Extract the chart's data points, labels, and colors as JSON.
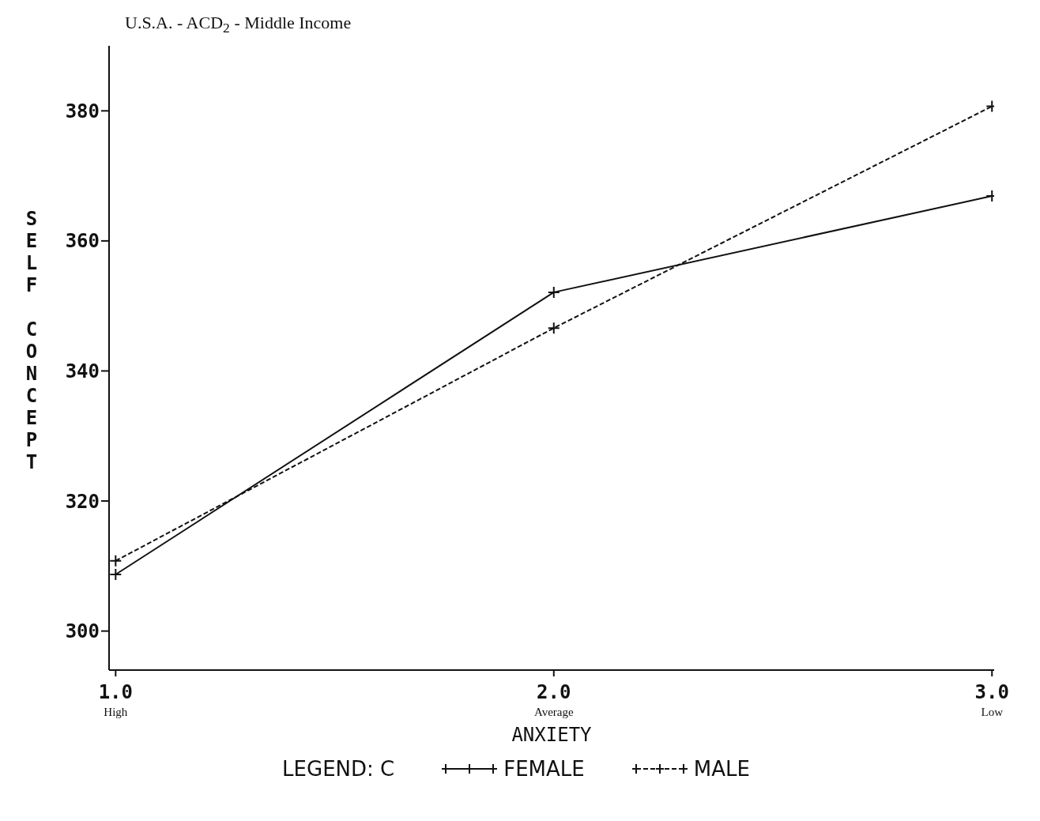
{
  "chart_data": {
    "type": "line",
    "title": "U.S.A. - ACD$_{2}$ - Middle Income",
    "xlabel": "ANXIETY",
    "ylabel": "SELF CONCEPT",
    "legend_title": "LEGEND: C",
    "x": [
      1,
      2,
      3
    ],
    "series": [
      {
        "name": "FEMALE",
        "color": "#111111",
        "values": [
          308.7,
          352.1,
          366.9
        ],
        "line_style": "solid"
      },
      {
        "name": "MALE",
        "color": "#111111",
        "values": [
          310.8,
          346.6,
          380.7
        ],
        "line_style": "dashed"
      }
    ],
    "xlim": [
      0.985,
      3.005
    ],
    "xticks": [
      {
        "value": 1,
        "label": "1.0\nHigh"
      },
      {
        "value": 2,
        "label": "2.0\nAverage"
      },
      {
        "value": 3,
        "label": "3.0\nLow"
      }
    ],
    "ylim": [
      294,
      390
    ],
    "yticks": [
      300,
      320,
      340,
      360,
      380
    ],
    "legend": "bottom",
    "marker": "cross"
  }
}
